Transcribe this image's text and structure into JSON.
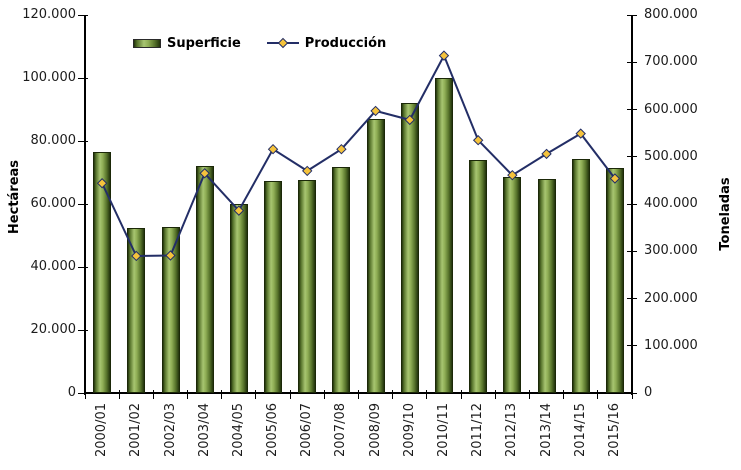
{
  "chart_data": {
    "type": "combo-bar-line",
    "title": "",
    "categories": [
      "2000/01",
      "2001/02",
      "2002/03",
      "2003/04",
      "2004/05",
      "2005/06",
      "2006/07",
      "2007/08",
      "2008/09",
      "2009/10",
      "2010/11",
      "2011/12",
      "2012/13",
      "2013/14",
      "2014/15",
      "2015/16"
    ],
    "series": [
      {
        "name": "Superficie",
        "type": "bar",
        "axis": "left",
        "unit": "hectáreas",
        "values": [
          76600,
          52500,
          52600,
          72200,
          59900,
          67400,
          67600,
          71900,
          87000,
          92000,
          99900,
          74000,
          68700,
          67900,
          74300,
          71300
        ]
      },
      {
        "name": "Producción",
        "type": "line",
        "axis": "right",
        "unit": "toneladas",
        "values": [
          444000,
          290000,
          291000,
          465000,
          386000,
          516000,
          470000,
          516000,
          597000,
          578000,
          714000,
          535000,
          461000,
          506000,
          549000,
          454000
        ]
      }
    ],
    "left_axis": {
      "title": "Hectáreas",
      "min": 0,
      "max": 120000,
      "tick_step": 20000,
      "tick_labels": [
        "120.000",
        "100.000",
        "80.000",
        "60.000",
        "40.000",
        "20.000",
        "0"
      ]
    },
    "right_axis": {
      "title": "Toneladas",
      "min": 0,
      "max": 800000,
      "tick_step": 100000,
      "tick_labels": [
        "800.000",
        "700.000",
        "600.000",
        "500.000",
        "400.000",
        "300.000",
        "200.000",
        "100.000",
        "0"
      ]
    },
    "legend": {
      "position": "top",
      "entries": [
        "Superficie",
        "Producción"
      ]
    },
    "grid": false
  },
  "colors": {
    "background": "#ffffff",
    "axis": "#000000",
    "text": "#1c1c1c",
    "bar_gradient_stops": [
      "#22330c",
      "#55712a",
      "#a7c571",
      "#8fae55",
      "#55712a",
      "#22330c"
    ],
    "bar_gradient_positions": [
      0,
      12,
      38,
      55,
      80,
      100
    ],
    "line": "#232e66",
    "marker_fill": "#f5c33c",
    "marker_border": "#232e66"
  }
}
